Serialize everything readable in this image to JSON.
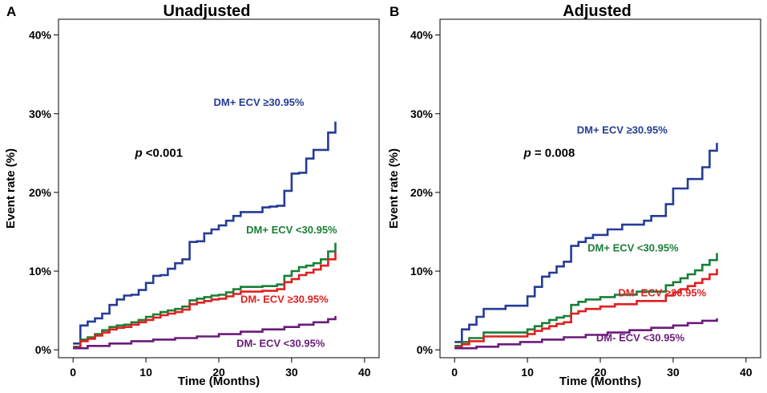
{
  "chart_data": [
    {
      "type": "line",
      "step": true,
      "panel_label": "A",
      "title": "Unadjusted",
      "xlabel": "Time (Months)",
      "ylabel": "Event rate (%)",
      "xlim": [
        -2,
        42
      ],
      "ylim": [
        -1,
        42
      ],
      "xticks": [
        0,
        10,
        20,
        30,
        40
      ],
      "xtick_labels": [
        "0",
        "10",
        "20",
        "30",
        "40"
      ],
      "yticks": [
        0,
        10,
        20,
        30,
        40
      ],
      "ytick_labels": [
        "0%",
        "10%",
        "20%",
        "30%",
        "40%"
      ],
      "annotation": {
        "p_symbol": "p",
        "p_text": " <0.001",
        "x": 8.5,
        "y": 24.5
      },
      "series": [
        {
          "name": "DM+ ECV ≥30.95%",
          "color": "#253c96",
          "label_pos": [
            25.5,
            31.0
          ],
          "x": [
            0,
            1,
            1,
            2,
            2,
            3,
            3,
            4,
            4,
            5,
            5,
            6,
            6,
            7,
            7,
            8,
            8,
            9,
            9,
            10,
            10,
            11,
            11,
            12,
            12,
            13,
            13,
            14,
            14,
            15,
            15,
            16,
            16,
            17,
            17,
            18,
            18,
            19,
            19,
            20,
            20,
            21,
            21,
            22,
            22,
            23,
            23,
            26,
            26,
            27,
            27,
            28,
            28,
            29,
            29,
            30,
            30,
            31,
            31,
            32,
            32,
            33,
            33,
            35,
            35,
            36,
            36
          ],
          "y": [
            0.8,
            0.8,
            3.1,
            3.1,
            3.6,
            3.6,
            4.0,
            4.0,
            4.6,
            4.6,
            5.7,
            5.7,
            6.4,
            6.4,
            6.9,
            6.9,
            7.0,
            7.0,
            7.6,
            7.6,
            8.5,
            8.5,
            9.4,
            9.4,
            9.5,
            9.5,
            10.3,
            10.3,
            11.0,
            11.0,
            11.5,
            11.5,
            13.7,
            13.7,
            13.8,
            13.8,
            14.8,
            14.8,
            15.3,
            15.3,
            15.8,
            15.8,
            16.4,
            16.4,
            17.0,
            17.0,
            17.5,
            17.5,
            18.1,
            18.1,
            18.2,
            18.2,
            18.3,
            18.3,
            20.2,
            20.2,
            22.4,
            22.4,
            22.5,
            22.5,
            24.3,
            24.3,
            25.4,
            25.4,
            27.6,
            27.6,
            29.0
          ]
        },
        {
          "name": "DM+ ECV <30.95%",
          "color": "#1a7f37",
          "label_pos": [
            30.0,
            14.8
          ],
          "x": [
            0,
            1,
            1,
            2,
            2,
            3,
            3,
            4,
            4,
            5,
            5,
            6,
            6,
            7,
            7,
            8,
            8,
            9,
            9,
            10,
            10,
            11,
            11,
            12,
            12,
            13,
            13,
            14,
            14,
            15,
            15,
            16,
            16,
            17,
            17,
            18,
            18,
            19,
            19,
            20,
            20,
            21,
            21,
            22,
            22,
            23,
            23,
            26,
            26,
            28,
            28,
            29,
            29,
            30,
            30,
            31,
            31,
            32,
            32,
            33,
            33,
            34,
            34,
            35,
            35,
            36,
            36
          ],
          "y": [
            0.4,
            0.4,
            1.3,
            1.3,
            1.6,
            1.6,
            2.0,
            2.0,
            2.5,
            2.5,
            2.9,
            2.9,
            3.1,
            3.1,
            3.2,
            3.2,
            3.5,
            3.5,
            3.8,
            3.8,
            4.2,
            4.2,
            4.5,
            4.5,
            4.8,
            4.8,
            5.0,
            5.0,
            5.2,
            5.2,
            5.5,
            5.5,
            6.3,
            6.3,
            6.5,
            6.5,
            6.7,
            6.7,
            6.9,
            6.9,
            7.0,
            7.0,
            7.3,
            7.3,
            7.7,
            7.7,
            8.0,
            8.0,
            8.1,
            8.1,
            8.3,
            8.3,
            9.4,
            9.4,
            10.0,
            10.0,
            10.5,
            10.5,
            10.7,
            10.7,
            11.0,
            11.0,
            11.5,
            11.5,
            12.5,
            12.5,
            13.6
          ]
        },
        {
          "name": "DM- ECV ≥30.95%",
          "color": "#e02020",
          "label_pos": [
            29.0,
            6.0
          ],
          "x": [
            0,
            1,
            1,
            2,
            2,
            3,
            3,
            4,
            4,
            5,
            5,
            6,
            6,
            7,
            7,
            8,
            8,
            9,
            9,
            10,
            10,
            11,
            11,
            12,
            12,
            13,
            13,
            14,
            14,
            15,
            15,
            16,
            16,
            17,
            17,
            18,
            18,
            19,
            19,
            20,
            20,
            21,
            21,
            22,
            22,
            23,
            23,
            26,
            26,
            28,
            28,
            29,
            29,
            30,
            30,
            31,
            31,
            32,
            32,
            33,
            33,
            34,
            34,
            35,
            35,
            36,
            36
          ],
          "y": [
            0.3,
            0.3,
            1.1,
            1.1,
            1.4,
            1.4,
            1.8,
            1.8,
            2.2,
            2.2,
            2.6,
            2.6,
            2.8,
            2.8,
            2.9,
            2.9,
            3.2,
            3.2,
            3.5,
            3.5,
            3.8,
            3.8,
            4.1,
            4.1,
            4.4,
            4.4,
            4.6,
            4.6,
            4.8,
            4.8,
            5.1,
            5.1,
            5.8,
            5.8,
            6.0,
            6.0,
            6.2,
            6.2,
            6.4,
            6.4,
            6.5,
            6.5,
            6.8,
            6.8,
            7.1,
            7.1,
            7.4,
            7.4,
            7.5,
            7.5,
            7.7,
            7.7,
            8.6,
            8.6,
            9.0,
            9.0,
            9.5,
            9.5,
            9.8,
            9.8,
            10.2,
            10.2,
            10.7,
            10.7,
            11.5,
            11.5,
            12.4
          ]
        },
        {
          "name": "DM- ECV <30.95%",
          "color": "#6a1b7a",
          "label_pos": [
            28.5,
            0.4
          ],
          "x": [
            0,
            2,
            2,
            5,
            5,
            8,
            8,
            11,
            11,
            14,
            14,
            17,
            17,
            20,
            20,
            23,
            23,
            26,
            26,
            29,
            29,
            31,
            31,
            33,
            33,
            35,
            35,
            36,
            36
          ],
          "y": [
            0.2,
            0.2,
            0.5,
            0.5,
            0.8,
            0.8,
            1.1,
            1.1,
            1.3,
            1.3,
            1.5,
            1.5,
            1.7,
            1.7,
            2.0,
            2.0,
            2.3,
            2.3,
            2.6,
            2.6,
            2.9,
            2.9,
            3.2,
            3.2,
            3.5,
            3.5,
            3.9,
            3.9,
            4.3
          ]
        }
      ]
    },
    {
      "type": "line",
      "step": true,
      "panel_label": "B",
      "title": "Adjusted",
      "xlabel": "Time (Months)",
      "ylabel": "Event rate (%)",
      "xlim": [
        -2,
        42
      ],
      "ylim": [
        -1,
        42
      ],
      "xticks": [
        0,
        10,
        20,
        30,
        40
      ],
      "xtick_labels": [
        "0",
        "10",
        "20",
        "30",
        "40"
      ],
      "yticks": [
        0,
        10,
        20,
        30,
        40
      ],
      "ytick_labels": [
        "0%",
        "10%",
        "20%",
        "30%",
        "40%"
      ],
      "annotation": {
        "p_symbol": "p",
        "p_text": " = 0.008",
        "x": 9.5,
        "y": 24.5
      },
      "series": [
        {
          "name": "DM+ ECV ≥30.95%",
          "color": "#253c96",
          "label_pos": [
            23.0,
            27.5
          ],
          "x": [
            0,
            1,
            1,
            2,
            2,
            3,
            3,
            4,
            4,
            7,
            7,
            10,
            10,
            11,
            11,
            12,
            12,
            13,
            13,
            14,
            14,
            15,
            15,
            16,
            16,
            17,
            17,
            18,
            18,
            19,
            19,
            21,
            21,
            23,
            23,
            26,
            26,
            27,
            27,
            29,
            29,
            30,
            30,
            32,
            32,
            34,
            34,
            35,
            35,
            36,
            36
          ],
          "y": [
            1.0,
            1.0,
            2.6,
            2.6,
            3.2,
            3.2,
            4.2,
            4.2,
            5.2,
            5.2,
            5.6,
            5.6,
            6.8,
            6.8,
            8.0,
            8.0,
            9.3,
            9.3,
            9.8,
            9.8,
            10.6,
            10.6,
            11.2,
            11.2,
            13.2,
            13.2,
            13.7,
            13.7,
            14.2,
            14.2,
            14.6,
            14.6,
            15.3,
            15.3,
            15.9,
            15.9,
            16.4,
            16.4,
            17.0,
            17.0,
            18.5,
            18.5,
            20.5,
            20.5,
            21.7,
            21.7,
            23.2,
            23.2,
            25.3,
            25.3,
            26.3
          ]
        },
        {
          "name": "DM+ ECV <30.95%",
          "color": "#1a7f37",
          "label_pos": [
            24.5,
            12.5
          ],
          "x": [
            0,
            1,
            1,
            2,
            2,
            4,
            4,
            10,
            10,
            11,
            11,
            12,
            12,
            13,
            13,
            14,
            14,
            15,
            15,
            16,
            16,
            17,
            17,
            18,
            18,
            20,
            20,
            22,
            22,
            25,
            25,
            29,
            29,
            30,
            30,
            31,
            31,
            32,
            32,
            33,
            33,
            34,
            34,
            35,
            35,
            36,
            36
          ],
          "y": [
            0.5,
            0.5,
            1.0,
            1.0,
            1.5,
            1.5,
            2.2,
            2.2,
            2.6,
            2.6,
            3.0,
            3.0,
            3.4,
            3.4,
            3.8,
            3.8,
            4.1,
            4.1,
            4.3,
            4.3,
            5.7,
            5.7,
            6.1,
            6.1,
            6.4,
            6.4,
            6.7,
            6.7,
            7.0,
            7.0,
            7.4,
            7.4,
            8.2,
            8.2,
            8.6,
            8.6,
            9.1,
            9.1,
            9.6,
            9.6,
            10.1,
            10.1,
            10.8,
            10.8,
            11.4,
            11.4,
            12.3
          ]
        },
        {
          "name": "DM- ECV ≥30.95%",
          "color": "#e02020",
          "label_pos": [
            28.5,
            6.8
          ],
          "x": [
            0,
            1,
            1,
            2,
            2,
            4,
            4,
            10,
            10,
            11,
            11,
            12,
            12,
            13,
            13,
            14,
            14,
            15,
            15,
            16,
            16,
            17,
            17,
            18,
            18,
            20,
            20,
            22,
            22,
            25,
            25,
            29,
            29,
            30,
            30,
            31,
            31,
            32,
            32,
            33,
            33,
            34,
            34,
            35,
            35,
            36,
            36
          ],
          "y": [
            0.3,
            0.3,
            0.7,
            0.7,
            1.1,
            1.1,
            1.7,
            1.7,
            2.0,
            2.0,
            2.4,
            2.4,
            2.7,
            2.7,
            3.0,
            3.0,
            3.3,
            3.3,
            3.5,
            3.5,
            4.6,
            4.6,
            4.9,
            4.9,
            5.2,
            5.2,
            5.5,
            5.5,
            5.8,
            5.8,
            6.2,
            6.2,
            6.9,
            6.9,
            7.3,
            7.3,
            7.7,
            7.7,
            8.1,
            8.1,
            8.5,
            8.5,
            9.0,
            9.0,
            9.6,
            9.6,
            10.3
          ]
        },
        {
          "name": "DM- ECV <30.95%",
          "color": "#6a1b7a",
          "label_pos": [
            25.5,
            1.1
          ],
          "x": [
            0,
            3,
            3,
            6,
            6,
            9,
            9,
            12,
            12,
            15,
            15,
            18,
            18,
            21,
            21,
            24,
            24,
            27,
            27,
            30,
            30,
            32,
            32,
            34,
            34,
            36,
            36
          ],
          "y": [
            0.2,
            0.2,
            0.4,
            0.4,
            0.7,
            0.7,
            1.0,
            1.0,
            1.3,
            1.3,
            1.6,
            1.6,
            1.9,
            1.9,
            2.2,
            2.2,
            2.5,
            2.5,
            2.8,
            2.8,
            3.1,
            3.1,
            3.4,
            3.4,
            3.7,
            3.7,
            4.0
          ]
        }
      ]
    }
  ]
}
